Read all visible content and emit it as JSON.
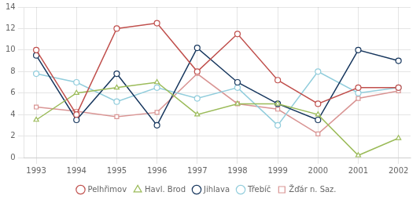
{
  "chart_data": {
    "type": "line",
    "x": [
      1993,
      1994,
      1995,
      1996,
      1997,
      1998,
      1999,
      2000,
      2001,
      2002
    ],
    "series": [
      {
        "name": "Pelhřimov",
        "color": "#c0504d",
        "marker": "circle",
        "values": [
          10.0,
          4.0,
          12.0,
          12.5,
          8.0,
          11.5,
          7.2,
          5.0,
          6.5,
          6.5
        ]
      },
      {
        "name": "Havl. Brod",
        "color": "#9bbb59",
        "marker": "triangle",
        "values": [
          3.5,
          6.0,
          6.5,
          7.0,
          4.0,
          5.0,
          5.0,
          4.0,
          0.2,
          1.8
        ]
      },
      {
        "name": "Jihlava",
        "color": "#17375e",
        "marker": "circle",
        "values": [
          9.5,
          3.5,
          7.8,
          3.0,
          10.2,
          7.0,
          5.0,
          3.5,
          10.0,
          9.0
        ]
      },
      {
        "name": "Třebíč",
        "color": "#92cddc",
        "marker": "circle",
        "values": [
          7.8,
          7.0,
          5.2,
          6.5,
          5.5,
          6.5,
          3.0,
          8.0,
          6.0,
          6.5
        ]
      },
      {
        "name": "Žďár n. Saz.",
        "color": "#d99594",
        "marker": "square",
        "values": [
          4.7,
          4.3,
          3.8,
          4.2,
          7.8,
          5.0,
          4.5,
          2.2,
          5.5,
          6.2
        ]
      }
    ],
    "xlim": [
      1992.7,
      2002.3
    ],
    "xticks": [
      1993,
      1994,
      1995,
      1996,
      1997,
      1998,
      1999,
      2000,
      2001,
      2002
    ],
    "ylim": [
      0,
      14
    ],
    "yticks": [
      0,
      2,
      4,
      6,
      8,
      10,
      12,
      14
    ],
    "grid": true,
    "legend": "bottom"
  }
}
